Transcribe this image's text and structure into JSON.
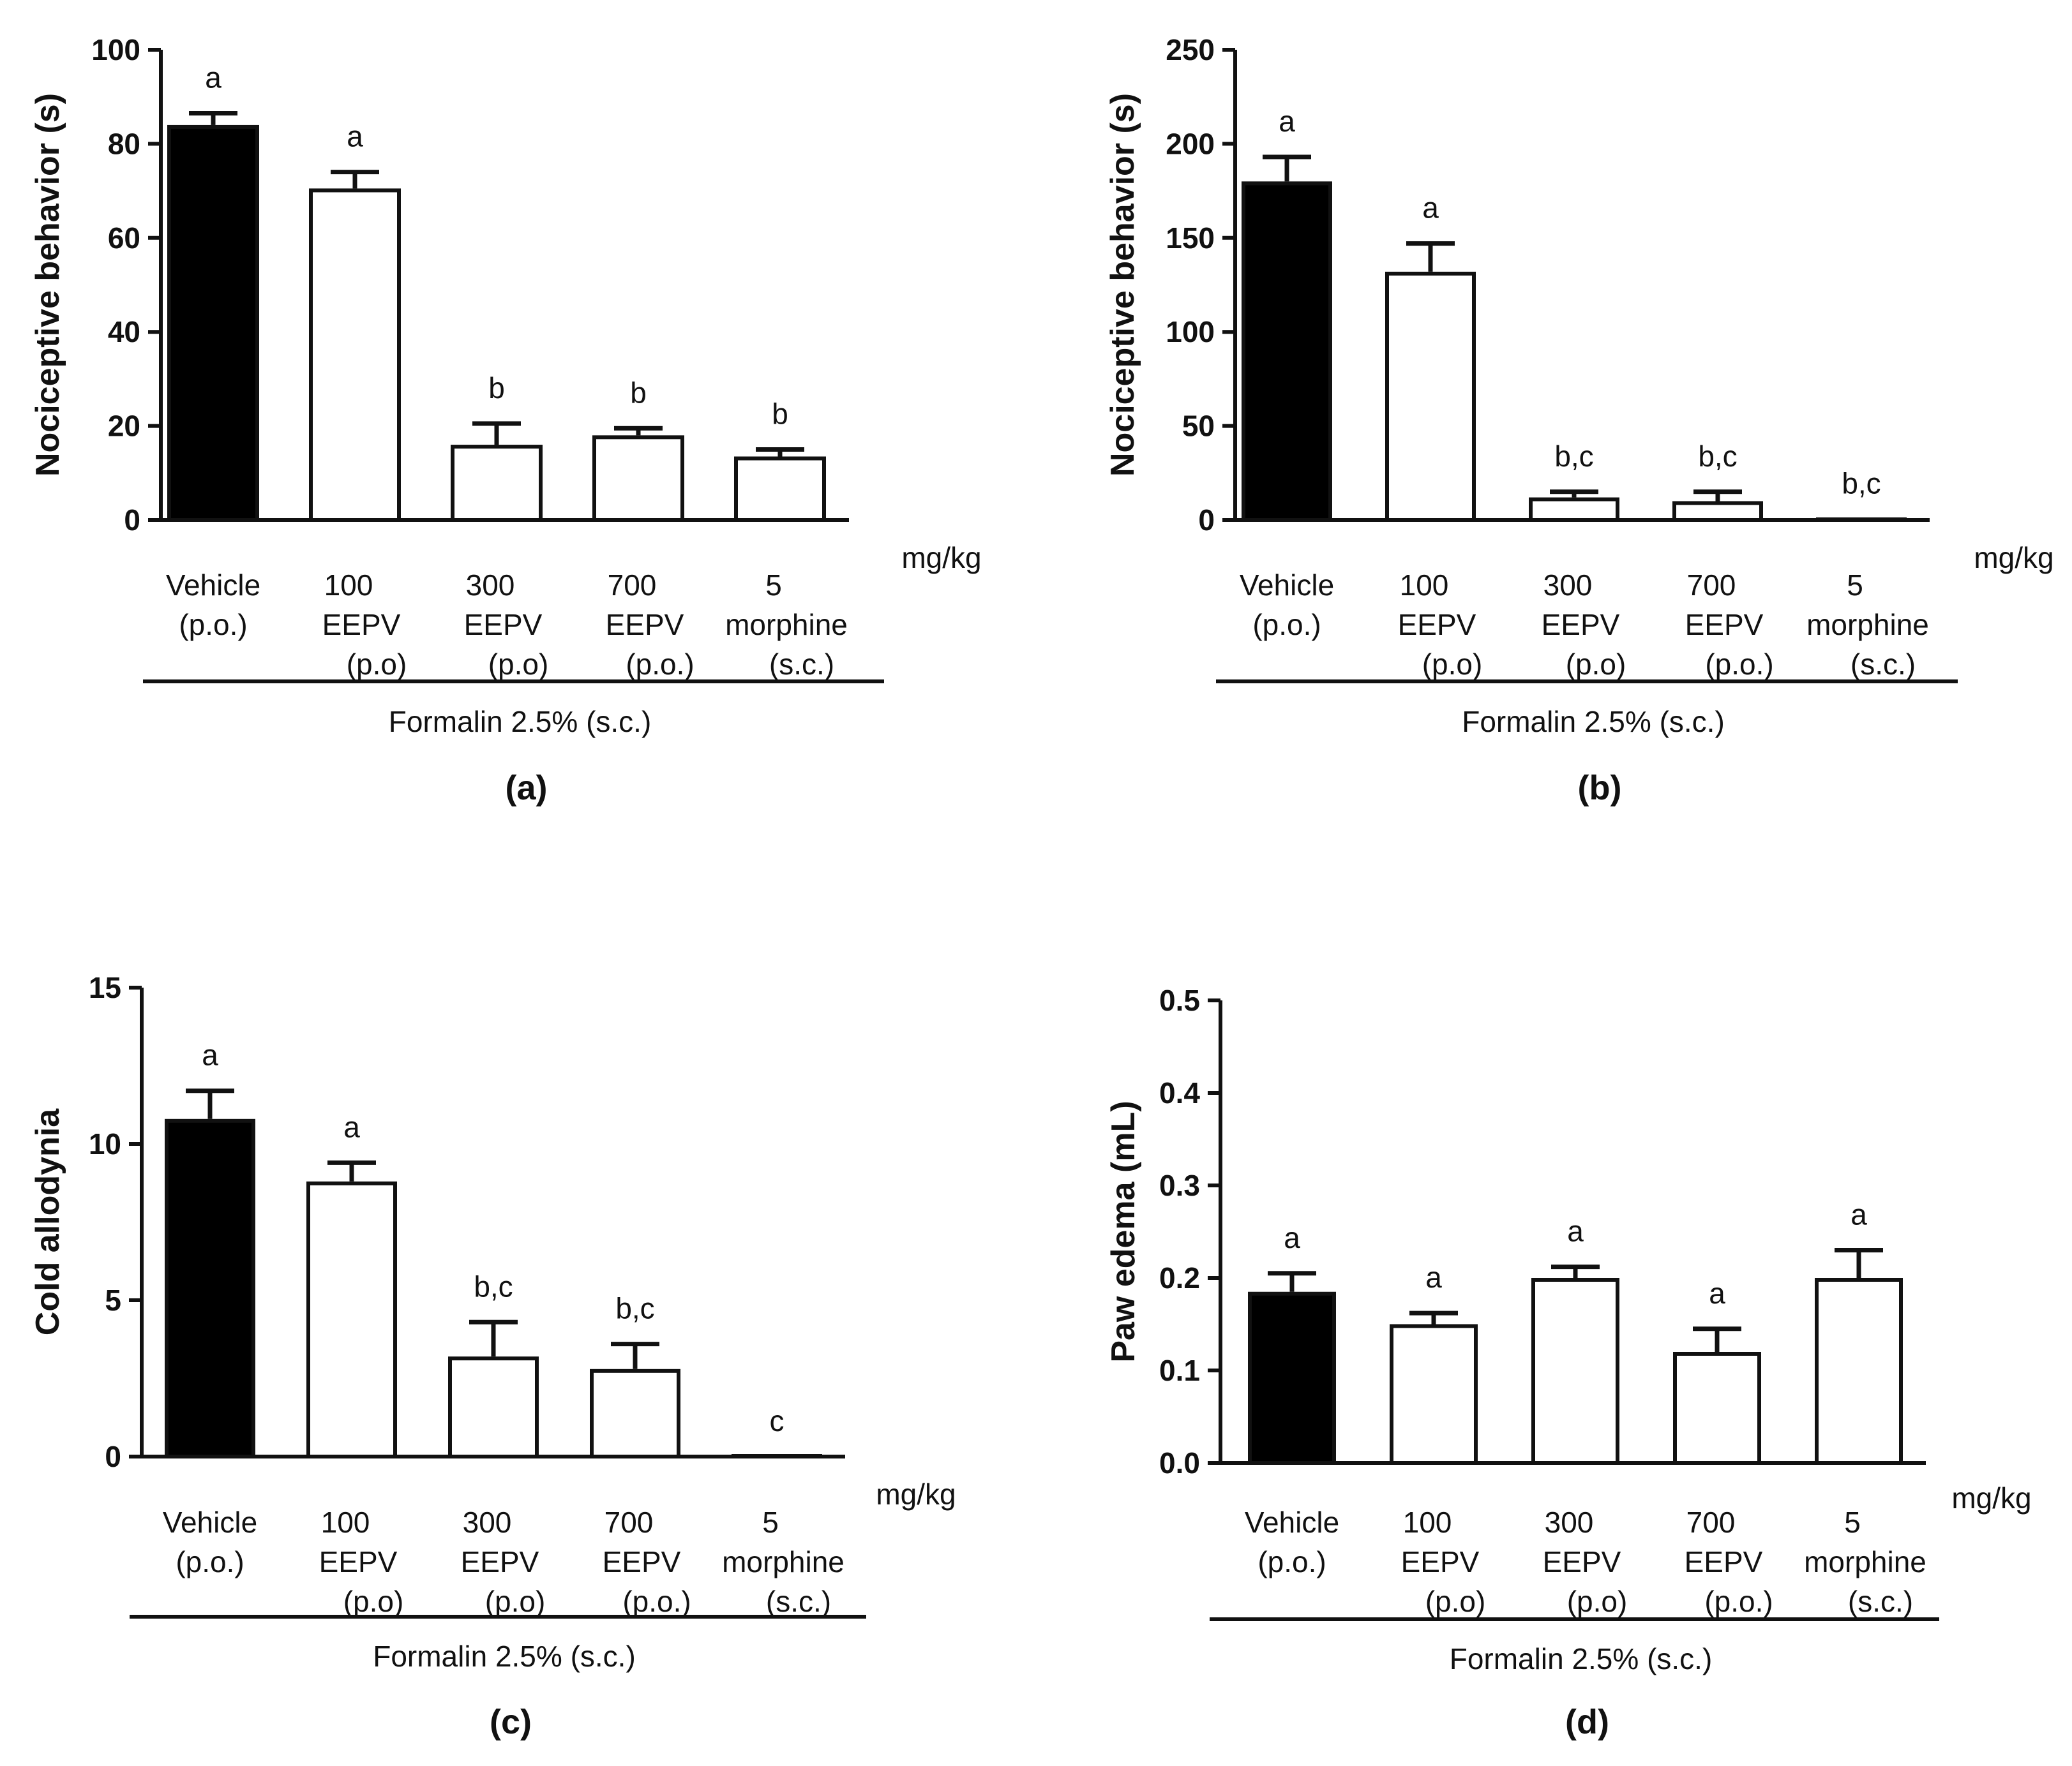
{
  "figure": {
    "unit_label": "mg/kg",
    "group_line_label": "Formalin 2.5% (s.c.)",
    "colors": {
      "ink": "#111111",
      "vehicle_fill": "#000000",
      "treated_fill": "#ffffff"
    }
  },
  "chart_data": [
    {
      "panel": "(a)",
      "type": "bar",
      "ylabel": "Nociceptive behavior (s)",
      "ylim": [
        0,
        100
      ],
      "yticks": [
        "0",
        "20",
        "40",
        "60",
        "80",
        "100"
      ],
      "ytick_values": [
        0,
        20,
        40,
        60,
        80,
        100
      ],
      "categories": [
        [
          "Vehicle",
          "(p.o.)"
        ],
        [
          "100",
          "EEPV",
          "(p.o)"
        ],
        [
          "300",
          "EEPV",
          "(p.o)"
        ],
        [
          "700",
          "EEPV",
          "(p.o.)"
        ],
        [
          "5",
          "morphine",
          "(s.c.)"
        ]
      ],
      "values": [
        84,
        70.5,
        16,
        18,
        13.5
      ],
      "errors": [
        2.5,
        3.5,
        4.5,
        1.5,
        1.5
      ],
      "annotations": [
        "a",
        "a",
        "b",
        "b",
        "b"
      ],
      "fills": [
        "black",
        "white",
        "white",
        "white",
        "white"
      ]
    },
    {
      "panel": "(b)",
      "type": "bar",
      "ylabel": "Nociceptive behavior (s)",
      "ylim": [
        0,
        250
      ],
      "yticks": [
        "0",
        "50",
        "100",
        "150",
        "200",
        "250"
      ],
      "ytick_values": [
        0,
        50,
        100,
        150,
        200,
        250
      ],
      "categories": [
        [
          "Vehicle",
          "(p.o.)"
        ],
        [
          "100",
          "EEPV",
          "(p.o)"
        ],
        [
          "300",
          "EEPV",
          "(p.o)"
        ],
        [
          "700",
          "EEPV",
          "(p.o.)"
        ],
        [
          "5",
          "morphine",
          "(s.c.)"
        ]
      ],
      "values": [
        180,
        132,
        12,
        10,
        0.5
      ],
      "errors": [
        13,
        15,
        3,
        5,
        0
      ],
      "annotations": [
        "a",
        "a",
        "b,c",
        "b,c",
        "b,c"
      ],
      "fills": [
        "black",
        "white",
        "white",
        "white",
        "white"
      ]
    },
    {
      "panel": "(c)",
      "type": "bar",
      "ylabel": "Cold allodynia",
      "ylim": [
        0,
        15
      ],
      "yticks": [
        "0",
        "5",
        "10",
        "15"
      ],
      "ytick_values": [
        0,
        5,
        10,
        15
      ],
      "categories": [
        [
          "Vehicle",
          "(p.o.)"
        ],
        [
          "100",
          "EEPV",
          "(p.o)"
        ],
        [
          "300",
          "EEPV",
          "(p.o)"
        ],
        [
          "700",
          "EEPV",
          "(p.o.)"
        ],
        [
          "5",
          "morphine",
          "(s.c.)"
        ]
      ],
      "values": [
        10.8,
        8.8,
        3.2,
        2.8,
        0
      ],
      "errors": [
        0.9,
        0.6,
        1.1,
        0.8,
        0
      ],
      "annotations": [
        "a",
        "a",
        "b,c",
        "b,c",
        "c"
      ],
      "fills": [
        "black",
        "white",
        "white",
        "white",
        "white"
      ]
    },
    {
      "panel": "(d)",
      "type": "bar",
      "ylabel": "Paw edema (mL)",
      "ylim": [
        0,
        0.5
      ],
      "yticks": [
        "0.0",
        "0.1",
        "0.2",
        "0.3",
        "0.4",
        "0.5"
      ],
      "ytick_values": [
        0,
        0.1,
        0.2,
        0.3,
        0.4,
        0.5
      ],
      "categories": [
        [
          "Vehicle",
          "(p.o.)"
        ],
        [
          "100",
          "EEPV",
          "(p.o)"
        ],
        [
          "300",
          "EEPV",
          "(p.o)"
        ],
        [
          "700",
          "EEPV",
          "(p.o.)"
        ],
        [
          "5",
          "morphine",
          "(s.c.)"
        ]
      ],
      "values": [
        0.185,
        0.15,
        0.2,
        0.12,
        0.2
      ],
      "errors": [
        0.02,
        0.012,
        0.012,
        0.025,
        0.03
      ],
      "annotations": [
        "a",
        "a",
        "a",
        "a",
        "a"
      ],
      "fills": [
        "black",
        "white",
        "white",
        "white",
        "white"
      ]
    }
  ]
}
